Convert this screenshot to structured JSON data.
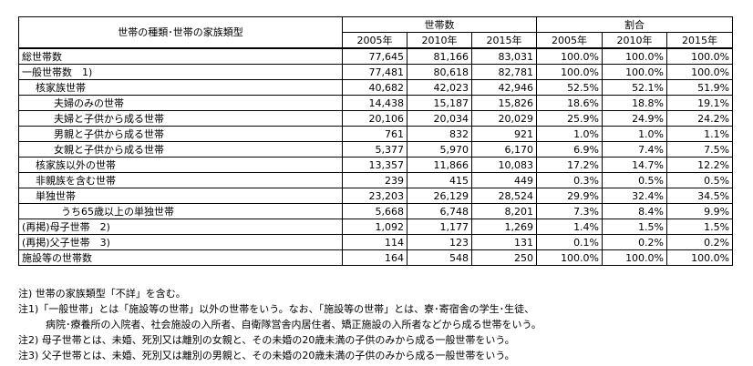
{
  "header": {
    "title": "世帯の種類･世帯の家族類型",
    "group_count": "世帯数",
    "group_ratio": "割合",
    "years": [
      "2005年",
      "2010年",
      "2015年"
    ]
  },
  "rows": [
    {
      "label": "総世帯数",
      "indent": 0,
      "c1": "77,645",
      "c2": "81,166",
      "c3": "83,031",
      "r1": "100.0%",
      "r2": "100.0%",
      "r3": "100.0%"
    },
    {
      "label": "一般世帯数　1)",
      "indent": 0,
      "c1": "77,481",
      "c2": "80,618",
      "c3": "82,781",
      "r1": "100.0%",
      "r2": "100.0%",
      "r3": "100.0%"
    },
    {
      "label": "核家族世帯",
      "indent": 1,
      "c1": "40,682",
      "c2": "42,023",
      "c3": "42,946",
      "r1": "52.5%",
      "r2": "52.1%",
      "r3": "51.9%"
    },
    {
      "label": "夫婦のみの世帯",
      "indent": 2,
      "c1": "14,438",
      "c2": "15,187",
      "c3": "15,826",
      "r1": "18.6%",
      "r2": "18.8%",
      "r3": "19.1%"
    },
    {
      "label": "夫婦と子供から成る世帯",
      "indent": 2,
      "c1": "20,106",
      "c2": "20,034",
      "c3": "20,029",
      "r1": "25.9%",
      "r2": "24.9%",
      "r3": "24.2%"
    },
    {
      "label": "男親と子供から成る世帯",
      "indent": 2,
      "c1": "761",
      "c2": "832",
      "c3": "921",
      "r1": "1.0%",
      "r2": "1.0%",
      "r3": "1.1%"
    },
    {
      "label": "女親と子供から成る世帯",
      "indent": 2,
      "c1": "5,377",
      "c2": "5,970",
      "c3": "6,170",
      "r1": "6.9%",
      "r2": "7.4%",
      "r3": "7.5%"
    },
    {
      "label": "核家族以外の世帯",
      "indent": 1,
      "c1": "13,357",
      "c2": "11,866",
      "c3": "10,083",
      "r1": "17.2%",
      "r2": "14.7%",
      "r3": "12.2%"
    },
    {
      "label": "非親族を含む世帯",
      "indent": 1,
      "c1": "239",
      "c2": "415",
      "c3": "449",
      "r1": "0.3%",
      "r2": "0.5%",
      "r3": "0.5%"
    },
    {
      "label": "単独世帯",
      "indent": 1,
      "c1": "23,203",
      "c2": "26,129",
      "c3": "28,524",
      "r1": "29.9%",
      "r2": "32.4%",
      "r3": "34.5%"
    },
    {
      "label": "うち65歳以上の単独世帯",
      "indent": 3,
      "c1": "5,668",
      "c2": "6,748",
      "c3": "8,201",
      "r1": "7.3%",
      "r2": "8.4%",
      "r3": "9.9%"
    },
    {
      "label": "(再掲)母子世帯　2)",
      "indent": 0,
      "c1": "1,092",
      "c2": "1,177",
      "c3": "1,269",
      "r1": "1.4%",
      "r2": "1.5%",
      "r3": "1.5%"
    },
    {
      "label": "(再掲)父子世帯　3)",
      "indent": 0,
      "c1": "114",
      "c2": "123",
      "c3": "131",
      "r1": "0.1%",
      "r2": "0.2%",
      "r3": "0.2%"
    },
    {
      "label": "施設等の世帯数",
      "indent": 0,
      "c1": "164",
      "c2": "548",
      "c3": "250",
      "r1": "100.0%",
      "r2": "100.0%",
      "r3": "100.0%"
    }
  ],
  "notes": [
    {
      "text": "注) 世帯の家族類型「不詳」を含む。",
      "indent": false
    },
    {
      "text": "注1)「一般世帯」とは「施設等の世帯」以外の世帯をいう。なお、「施設等の世帯」とは、寮･寄宿舎の学生･生徒、",
      "indent": false
    },
    {
      "text": "病院･療養所の入院者、社会施設の入所者、自衛隊営舎内居住者、矯正施設の入所者などから成る世帯をいう。",
      "indent": true
    },
    {
      "text": "注2) 母子世帯とは、未婚、死別又は離別の女親と、その未婚の20歳未満の子供のみから成る一般世帯をいう。",
      "indent": false
    },
    {
      "text": "注3) 父子世帯とは、未婚、死別又は離別の男親と、その未婚の20歳未満の子供のみから成る一般世帯をいう。",
      "indent": false
    }
  ]
}
